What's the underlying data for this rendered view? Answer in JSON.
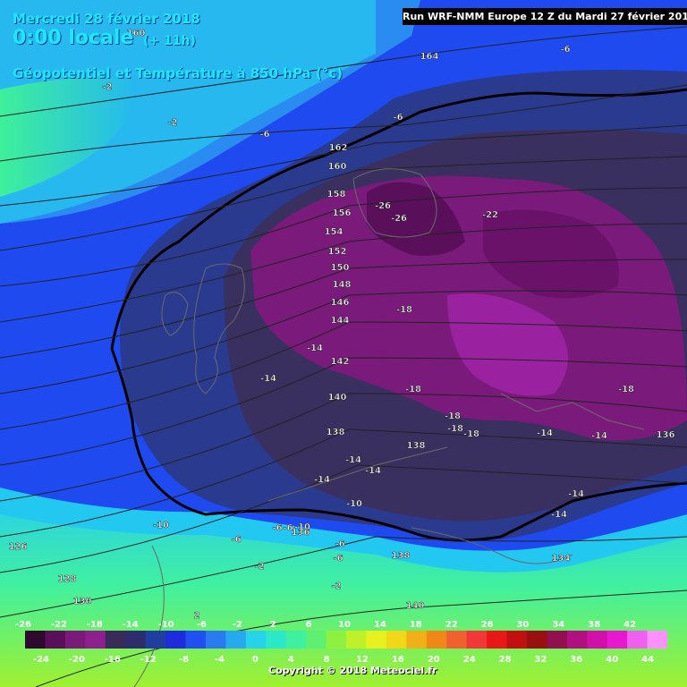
{
  "header": {
    "date": "Mercredi 28 février 2018",
    "time": "0:00 locale",
    "lead": "(+ 11h)",
    "parameter": "Géopotentiel et Température à 850 hPa (°c)"
  },
  "run_info": "Run WRF-NMM Europe 12 Z du Mardi 27 février 2018",
  "copyright": "Copyright © 2018 Meteociel.fr",
  "legend": {
    "top_labels": [
      "-26",
      "-22",
      "-18",
      "-14",
      "-10",
      "-6",
      "-2",
      "2",
      "6",
      "10",
      "14",
      "18",
      "22",
      "26",
      "30",
      "34",
      "38",
      "42"
    ],
    "bottom_labels": [
      "-24",
      "-20",
      "-16",
      "-12",
      "-8",
      "-4",
      "0",
      "4",
      "8",
      "12",
      "16",
      "20",
      "24",
      "28",
      "32",
      "36",
      "40",
      "44"
    ],
    "colors": [
      "#2e0a2e",
      "#5a0f5a",
      "#7a1a7a",
      "#8e1f8e",
      "#3a2a5a",
      "#2d2d6e",
      "#1f3ea0",
      "#1e2cdb",
      "#2150f0",
      "#2a7af0",
      "#27a9f0",
      "#27d3e8",
      "#2ae8c8",
      "#3ef0a0",
      "#5ef070",
      "#8ef040",
      "#c0f028",
      "#e8f020",
      "#f0d818",
      "#f0b018",
      "#f08818",
      "#f06030",
      "#f03838",
      "#e81818",
      "#c01010",
      "#981010",
      "#901050",
      "#b01080",
      "#d010a8",
      "#e818d0",
      "#f060f0",
      "#ff90ff"
    ]
  },
  "isobar_labels": [
    {
      "v": "164"
    },
    {
      "v": "162"
    },
    {
      "v": "160"
    },
    {
      "v": "158"
    },
    {
      "v": "156"
    },
    {
      "v": "154"
    },
    {
      "v": "152"
    },
    {
      "v": "150"
    },
    {
      "v": "148"
    },
    {
      "v": "146"
    },
    {
      "v": "144"
    },
    {
      "v": "142"
    },
    {
      "v": "140"
    },
    {
      "v": "138"
    },
    {
      "v": "138"
    },
    {
      "v": "136"
    },
    {
      "v": "136"
    },
    {
      "v": "134"
    },
    {
      "v": "128"
    },
    {
      "v": "130"
    },
    {
      "v": "126"
    },
    {
      "v": "138"
    },
    {
      "v": "140"
    },
    {
      "v": "160"
    }
  ],
  "temperature_labels": [
    {
      "v": "-26"
    },
    {
      "v": "-26"
    },
    {
      "v": "-22"
    },
    {
      "v": "-18"
    },
    {
      "v": "-18"
    },
    {
      "v": "-18"
    },
    {
      "v": "-18"
    },
    {
      "v": "-18"
    },
    {
      "v": "-18"
    },
    {
      "v": "-14"
    },
    {
      "v": "-14"
    },
    {
      "v": "-14"
    },
    {
      "v": "-14"
    },
    {
      "v": "-14"
    },
    {
      "v": "-14"
    },
    {
      "v": "-14"
    },
    {
      "v": "-14"
    },
    {
      "v": "-14"
    },
    {
      "v": "-10"
    },
    {
      "v": "-10"
    },
    {
      "v": "-10"
    },
    {
      "v": "-6"
    },
    {
      "v": "-6"
    },
    {
      "v": "-6"
    },
    {
      "v": "-6"
    },
    {
      "v": "-6"
    },
    {
      "v": "-2"
    },
    {
      "v": "-2"
    },
    {
      "v": "-2"
    },
    {
      "v": "-6"
    },
    {
      "v": "-6"
    },
    {
      "v": "-6"
    },
    {
      "v": "2"
    },
    {
      "v": "-2"
    }
  ]
}
